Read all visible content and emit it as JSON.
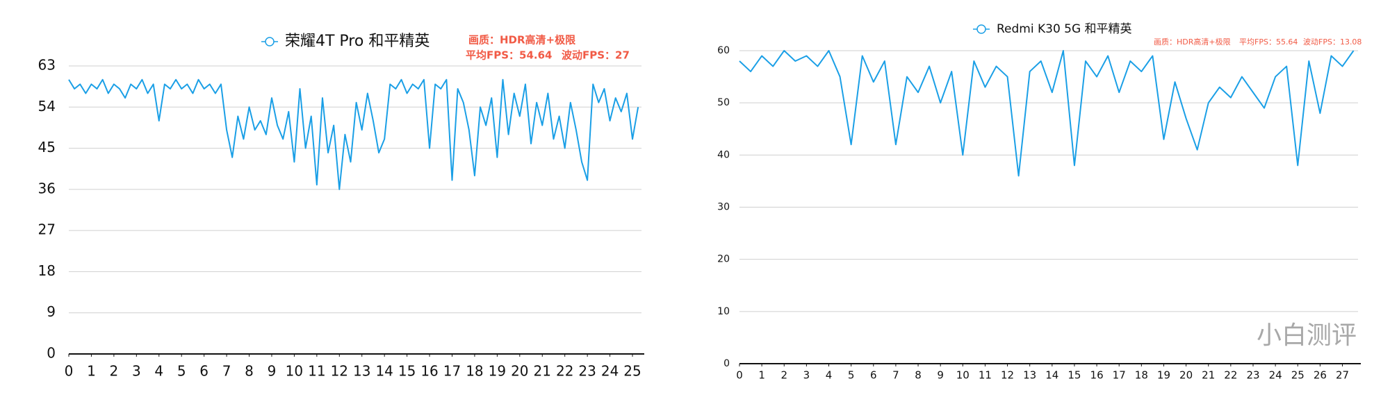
{
  "chart_data": [
    {
      "type": "line",
      "annotations": [
        "画质：HDR高清+极限",
        "平均FPS：54.64",
        "波动FPS：27"
      ],
      "x": [
        0,
        0.25,
        0.5,
        0.75,
        1,
        1.25,
        1.5,
        1.75,
        2,
        2.25,
        2.5,
        2.75,
        3,
        3.25,
        3.5,
        3.75,
        4,
        4.25,
        4.5,
        4.75,
        5,
        5.25,
        5.5,
        5.75,
        6,
        6.25,
        6.5,
        6.75,
        7,
        7.25,
        7.5,
        7.75,
        8,
        8.25,
        8.5,
        8.75,
        9,
        9.25,
        9.5,
        9.75,
        10,
        10.25,
        10.5,
        10.75,
        11,
        11.25,
        11.5,
        11.75,
        12,
        12.25,
        12.5,
        12.75,
        13,
        13.25,
        13.5,
        13.75,
        14,
        14.25,
        14.5,
        14.75,
        15,
        15.25,
        15.5,
        15.75,
        16,
        16.25,
        16.5,
        16.75,
        17,
        17.25,
        17.5,
        17.75,
        18,
        18.25,
        18.5,
        18.75,
        19,
        19.25,
        19.5,
        19.75,
        20,
        20.25,
        20.5,
        20.75,
        21,
        21.25,
        21.5,
        21.75,
        22,
        22.25,
        22.5,
        22.75,
        23,
        23.25,
        23.5,
        23.75,
        24,
        24.25,
        24.5,
        24.75,
        25,
        25.25
      ],
      "series": [
        {
          "name": "荣耀4T Pro 和平精英",
          "color": "#1a9fe6",
          "values": [
            60,
            58,
            59,
            57,
            59,
            58,
            60,
            57,
            59,
            58,
            56,
            59,
            58,
            60,
            57,
            59,
            51,
            59,
            58,
            60,
            58,
            59,
            57,
            60,
            58,
            59,
            57,
            59,
            49,
            43,
            52,
            47,
            54,
            49,
            51,
            48,
            56,
            50,
            47,
            53,
            42,
            58,
            45,
            52,
            37,
            56,
            44,
            50,
            36,
            48,
            42,
            55,
            49,
            57,
            51,
            44,
            47,
            59,
            58,
            60,
            57,
            59,
            58,
            60,
            45,
            59,
            58,
            60,
            38,
            58,
            55,
            49,
            39,
            54,
            50,
            56,
            43,
            60,
            48,
            57,
            52,
            59,
            46,
            55,
            50,
            57,
            47,
            52,
            45,
            55,
            49,
            42,
            38,
            59,
            55,
            58,
            51,
            56,
            53,
            57,
            47,
            54
          ]
        }
      ],
      "xlim": [
        0,
        25.4
      ],
      "xticks": [
        0,
        1,
        2,
        3,
        4,
        5,
        6,
        7,
        8,
        9,
        10,
        11,
        12,
        13,
        14,
        15,
        16,
        17,
        18,
        19,
        20,
        21,
        22,
        23,
        24,
        25
      ],
      "ylim": [
        0,
        63
      ],
      "yticks": [
        0,
        9,
        18,
        27,
        36,
        45,
        54,
        63
      ],
      "grid": true
    },
    {
      "type": "line",
      "annotations": [
        "画质：HDR高清+极限",
        "平均FPS：55.64",
        "波动FPS：13.08"
      ],
      "watermark": "小白测评",
      "x": [
        0,
        0.5,
        1,
        1.5,
        2,
        2.5,
        3,
        3.5,
        4,
        4.5,
        5,
        5.5,
        6,
        6.5,
        7,
        7.5,
        8,
        8.5,
        9,
        9.5,
        10,
        10.5,
        11,
        11.5,
        12,
        12.5,
        13,
        13.5,
        14,
        14.5,
        15,
        15.5,
        16,
        16.5,
        17,
        17.5,
        18,
        18.5,
        19,
        19.5,
        20,
        20.5,
        21,
        21.5,
        22,
        22.5,
        23,
        23.5,
        24,
        24.5,
        25,
        25.5,
        26,
        26.5,
        27,
        27.5
      ],
      "series": [
        {
          "name": "Redmi K30 5G 和平精英",
          "color": "#1a9fe6",
          "values": [
            58,
            56,
            59,
            57,
            60,
            58,
            59,
            57,
            60,
            55,
            42,
            59,
            54,
            58,
            42,
            55,
            52,
            57,
            50,
            56,
            40,
            58,
            53,
            57,
            55,
            36,
            56,
            58,
            52,
            60,
            38,
            58,
            55,
            59,
            52,
            58,
            56,
            59,
            43,
            54,
            47,
            41,
            50,
            53,
            51,
            55,
            52,
            49,
            55,
            57,
            38,
            58,
            48,
            59,
            57,
            60
          ]
        }
      ],
      "xlim": [
        0,
        27.7
      ],
      "xticks": [
        0,
        1,
        2,
        3,
        4,
        5,
        6,
        7,
        8,
        9,
        10,
        11,
        12,
        13,
        14,
        15,
        16,
        17,
        18,
        19,
        20,
        21,
        22,
        23,
        24,
        25,
        26,
        27
      ],
      "ylim": [
        0,
        60
      ],
      "yticks": [
        0,
        10,
        20,
        30,
        40,
        50,
        60
      ],
      "grid": true
    }
  ]
}
